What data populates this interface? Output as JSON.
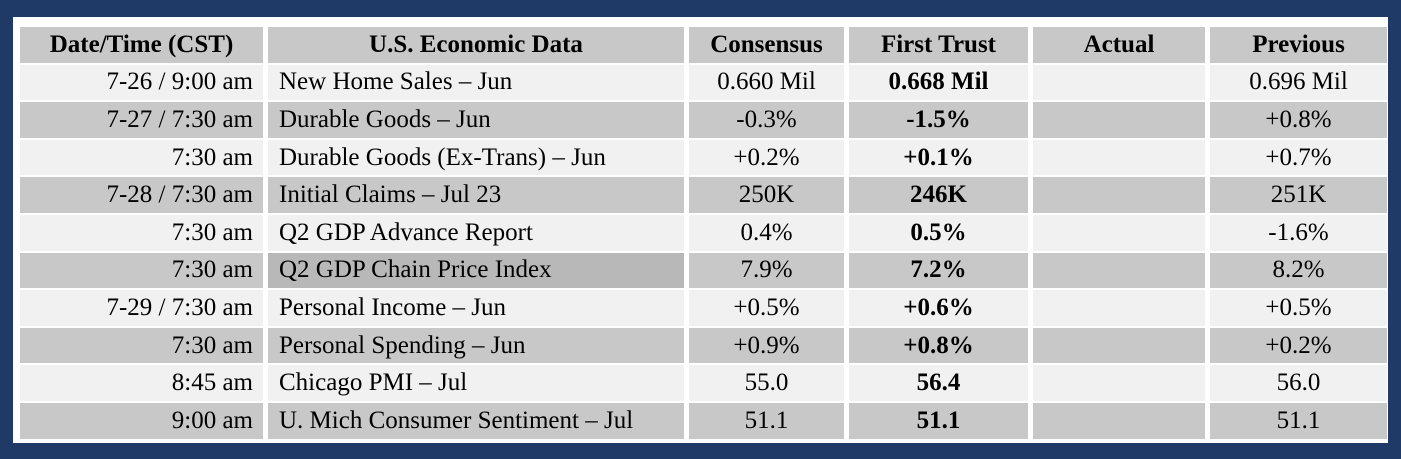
{
  "headers": {
    "date": "Date/Time (CST)",
    "data": "U.S. Economic Data",
    "consensus": "Consensus",
    "first_trust": "First Trust",
    "actual": "Actual",
    "previous": "Previous"
  },
  "rows": [
    {
      "date": "7-26 / 9:00 am",
      "name": "New Home Sales – Jun",
      "consensus": "0.660 Mil",
      "first_trust": "0.668 Mil",
      "actual": "",
      "previous": "0.696 Mil"
    },
    {
      "date": "7-27 / 7:30 am",
      "name": "Durable Goods – Jun",
      "consensus": "-0.3%",
      "first_trust": "-1.5%",
      "actual": "",
      "previous": "+0.8%"
    },
    {
      "date": "7:30 am",
      "name": "Durable Goods (Ex-Trans) – Jun",
      "consensus": "+0.2%",
      "first_trust": "+0.1%",
      "actual": "",
      "previous": "+0.7%"
    },
    {
      "date": "7-28 / 7:30 am",
      "name": "Initial Claims – Jul 23",
      "consensus": "250K",
      "first_trust": "246K",
      "actual": "",
      "previous": "251K"
    },
    {
      "date": "7:30 am",
      "name": "Q2 GDP Advance Report",
      "consensus": "0.4%",
      "first_trust": "0.5%",
      "actual": "",
      "previous": "-1.6%"
    },
    {
      "date": "7:30 am",
      "name": "Q2 GDP Chain Price Index",
      "consensus": "7.9%",
      "first_trust": "7.2%",
      "actual": "",
      "previous": "8.2%"
    },
    {
      "date": "7-29 / 7:30 am",
      "name": "Personal Income – Jun",
      "consensus": "+0.5%",
      "first_trust": "+0.6%",
      "actual": "",
      "previous": "+0.5%"
    },
    {
      "date": "7:30 am",
      "name": "Personal Spending – Jun",
      "consensus": "+0.9%",
      "first_trust": "+0.8%",
      "actual": "",
      "previous": "+0.2%"
    },
    {
      "date": "8:45 am",
      "name": "Chicago PMI – Jul",
      "consensus": "55.0",
      "first_trust": "56.4",
      "actual": "",
      "previous": "56.0"
    },
    {
      "date": "9:00 am",
      "name": "U. Mich Consumer Sentiment – Jul",
      "consensus": "51.1",
      "first_trust": "51.1",
      "actual": "",
      "previous": "51.1"
    }
  ],
  "colors": {
    "frame": "#1f3a66",
    "header_bg": "#c8c8c8",
    "row_light": "#f1f1f1",
    "row_dark": "#c8c8c8"
  }
}
